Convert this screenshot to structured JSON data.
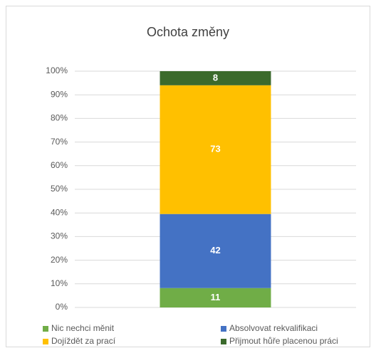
{
  "chart_data": {
    "type": "bar",
    "stacked": "percent",
    "title": "Ochota změny",
    "categories": [
      null
    ],
    "series": [
      {
        "name": "Nic nechci měnit",
        "color": "#70ad47",
        "values": [
          11
        ]
      },
      {
        "name": "Absolvovat rekvalifikaci",
        "color": "#4472c4",
        "values": [
          42
        ]
      },
      {
        "name": "Dojíždět za prací",
        "color": "#ffc000",
        "values": [
          73
        ]
      },
      {
        "name": "Přijmout hůře placenou práci",
        "color": "#3b6a2c",
        "values": [
          8
        ]
      }
    ],
    "ylim": [
      0,
      100
    ],
    "yticks": [
      {
        "value": 0,
        "label": "0%"
      },
      {
        "value": 10,
        "label": "10%"
      },
      {
        "value": 20,
        "label": "20%"
      },
      {
        "value": 30,
        "label": "30%"
      },
      {
        "value": 40,
        "label": "40%"
      },
      {
        "value": 50,
        "label": "50%"
      },
      {
        "value": 60,
        "label": "60%"
      },
      {
        "value": 70,
        "label": "70%"
      },
      {
        "value": 80,
        "label": "80%"
      },
      {
        "value": 90,
        "label": "90%"
      },
      {
        "value": 100,
        "label": "100%"
      }
    ],
    "grid": true,
    "legend": "bottom"
  }
}
